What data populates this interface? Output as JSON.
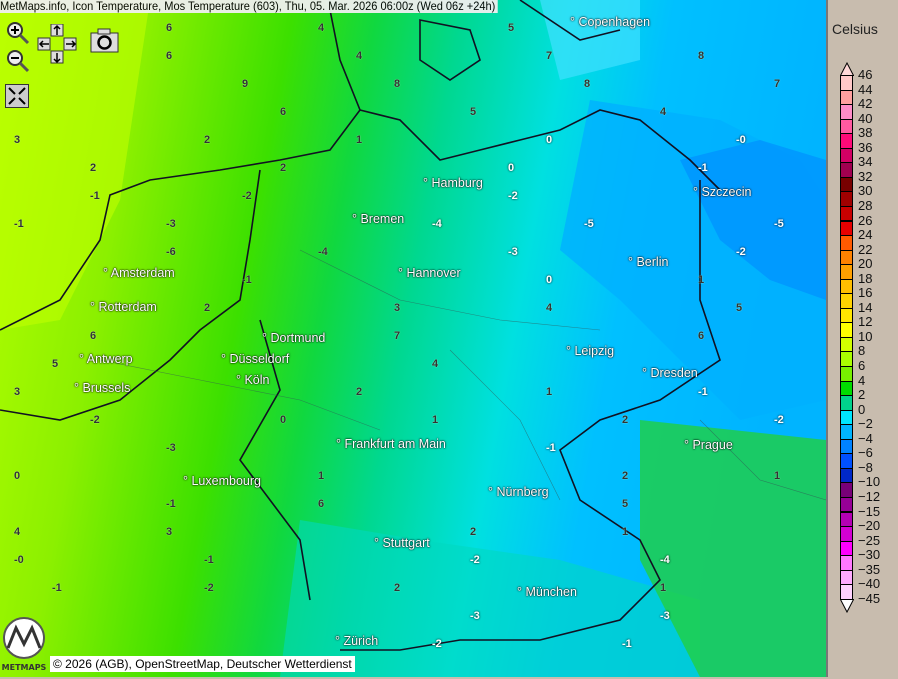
{
  "title": "MetMaps.info, Icon Temperature, Mos Temperature (603), Thu, 05. Mar. 2026 06:00z (Wed 06z +24h)",
  "controls": {
    "zoom_in": "zoom-in-icon",
    "zoom_out": "zoom-out-icon",
    "pan": "pan-arrows-icon",
    "camera": "camera-icon",
    "fullscreen": "fullscreen-icon"
  },
  "cities": [
    "Copenhagen",
    "Hamburg",
    "Szczecin",
    "Bremen",
    "Amsterdam",
    "Hannover",
    "Berlin",
    "Rotterdam",
    "Dortmund",
    "Antwerp",
    "Düsseldorf",
    "Leipzig",
    "Dresden",
    "Brussels",
    "Köln",
    "Frankfurt am Main",
    "Prague",
    "Luxembourg",
    "Nürnberg",
    "Stuttgart",
    "München",
    "Zürich"
  ],
  "legend": {
    "title": "Celsius",
    "labels": [
      "46",
      "44",
      "42",
      "40",
      "38",
      "36",
      "34",
      "32",
      "30",
      "28",
      "26",
      "24",
      "22",
      "20",
      "18",
      "16",
      "14",
      "12",
      "10",
      "8",
      "6",
      "4",
      "2",
      "0",
      "−2",
      "−4",
      "−6",
      "−8",
      "−10",
      "−12",
      "−15",
      "−20",
      "−25",
      "−30",
      "−35",
      "−40",
      "−45"
    ],
    "colors": [
      "#ffc8c8",
      "#ffa0a0",
      "#ff8cc8",
      "#ff5aa0",
      "#ff0a78",
      "#d20064",
      "#a00050",
      "#780000",
      "#a00000",
      "#c80000",
      "#e60000",
      "#ff5a00",
      "#ff8200",
      "#ffa000",
      "#ffbe00",
      "#ffd200",
      "#ffe600",
      "#ffff00",
      "#d2ff00",
      "#aaff00",
      "#78f000",
      "#00dc00",
      "#00d28c",
      "#00e6ff",
      "#00b4ff",
      "#0082ff",
      "#0050ff",
      "#0028c8",
      "#780078",
      "#960096",
      "#b400b4",
      "#d200d2",
      "#ff00ff",
      "#ff78ff",
      "#ffaaff",
      "#ffd2ff"
    ],
    "top_color": "#ffd8d8",
    "bottom_color": "#ffffff"
  },
  "values": [
    "6",
    "4",
    "5",
    "6",
    "4",
    "7",
    "8",
    "9",
    "8",
    "8",
    "7",
    "6",
    "5",
    "4",
    "3",
    "2",
    "1",
    "0",
    "-0",
    "2",
    "2",
    "0",
    "-1",
    "-1",
    "-2",
    "-2",
    "-1",
    "-3",
    "-4",
    "-5",
    "-5",
    "-6",
    "-4",
    "-3",
    "-2",
    "-1",
    "0",
    "1",
    "2",
    "3",
    "4",
    "5",
    "6",
    "7",
    "6",
    "5",
    "4",
    "3",
    "2",
    "1",
    "-1",
    "-2",
    "0",
    "1",
    "2",
    "-2",
    "-3",
    "-1",
    "0",
    "1",
    "2",
    "1",
    "-1",
    "6",
    "5",
    "4",
    "3",
    "2",
    "1",
    "-0",
    "-1",
    "-2",
    "-4",
    "-1",
    "-2",
    "2",
    "1",
    "-3",
    "-3",
    "-2",
    "-1"
  ],
  "attribution": "© 2026 (AGB), OpenStreetMap, Deutscher Wetterdienst",
  "logo_text": "METMAPS"
}
